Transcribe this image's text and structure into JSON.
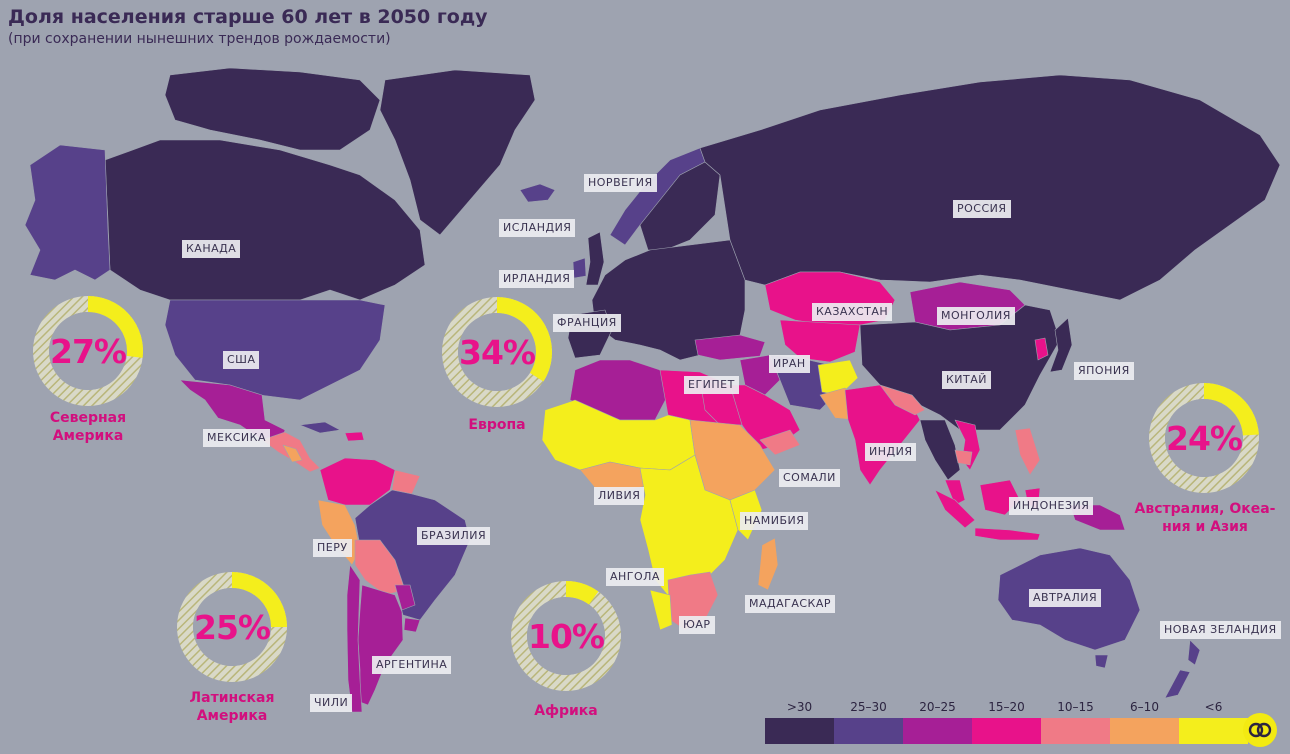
{
  "title": "Доля населения старше 60 лет в 2050 году",
  "subtitle": "(при сохранении нынешних трендов рождаемости)",
  "palette": {
    "gt30": "#3a2a55",
    "25_30": "#57418a",
    "20_25": "#a61f96",
    "15_20": "#e8128a",
    "10_15": "#f07a86",
    "6_10": "#f4a35e",
    "lt6": "#f4ee1c",
    "ocean": "#9ea3b0"
  },
  "countries": {
    "canada": "КАНАДА",
    "usa": "США",
    "mexico": "МЕКСИКА",
    "brazil": "БРАЗИЛИЯ",
    "peru": "ПЕРУ",
    "argentina": "АРГЕНТИНА",
    "chile": "ЧИЛИ",
    "iceland": "ИСЛАНДИЯ",
    "norway": "НОРВЕГИЯ",
    "ireland": "ИРЛАНДИЯ",
    "france": "ФРАНЦИЯ",
    "libya": "ЛИВИЯ",
    "egypt": "ЕГИПЕТ",
    "somalia": "СОМАЛИ",
    "namibia": "НАМИБИЯ",
    "angola": "АНГОЛА",
    "south_africa": "ЮАР",
    "madagascar": "МАДАГАСКАР",
    "russia": "РОССИЯ",
    "kazakhstan": "КАЗАХСТАН",
    "mongolia": "МОНГОЛИЯ",
    "iran": "ИРАН",
    "china": "КИТАЙ",
    "japan": "ЯПОНИЯ",
    "india": "ИНДИЯ",
    "indonesia": "ИНДОНЕЗИЯ",
    "australia": "АВТРАЛИЯ",
    "new_zealand": "НОВАЯ ЗЕЛАНДИЯ"
  },
  "regions": {
    "north_america": {
      "value": 27,
      "label": "27%",
      "name_line1": "Северная",
      "name_line2": "Америка"
    },
    "europe": {
      "value": 34,
      "label": "34%",
      "name_line1": "Европа",
      "name_line2": ""
    },
    "latin_america": {
      "value": 25,
      "label": "25%",
      "name_line1": "Латинская",
      "name_line2": "Америка"
    },
    "africa": {
      "value": 10,
      "label": "10%",
      "name_line1": "Африка",
      "name_line2": ""
    },
    "asia_pacific": {
      "value": 24,
      "label": "24%",
      "name_line1": "Австралия, Океа-",
      "name_line2": "ния и Азия"
    }
  },
  "legend": [
    {
      "label": ">30",
      "color": "#3a2a55"
    },
    {
      "label": "25–30",
      "color": "#57418a"
    },
    {
      "label": "20–25",
      "color": "#a61f96"
    },
    {
      "label": "15–20",
      "color": "#e8128a"
    },
    {
      "label": "10–15",
      "color": "#f07a86"
    },
    {
      "label": "6–10",
      "color": "#f4a35e"
    },
    {
      "label": "<6",
      "color": "#f4ee1c"
    }
  ]
}
